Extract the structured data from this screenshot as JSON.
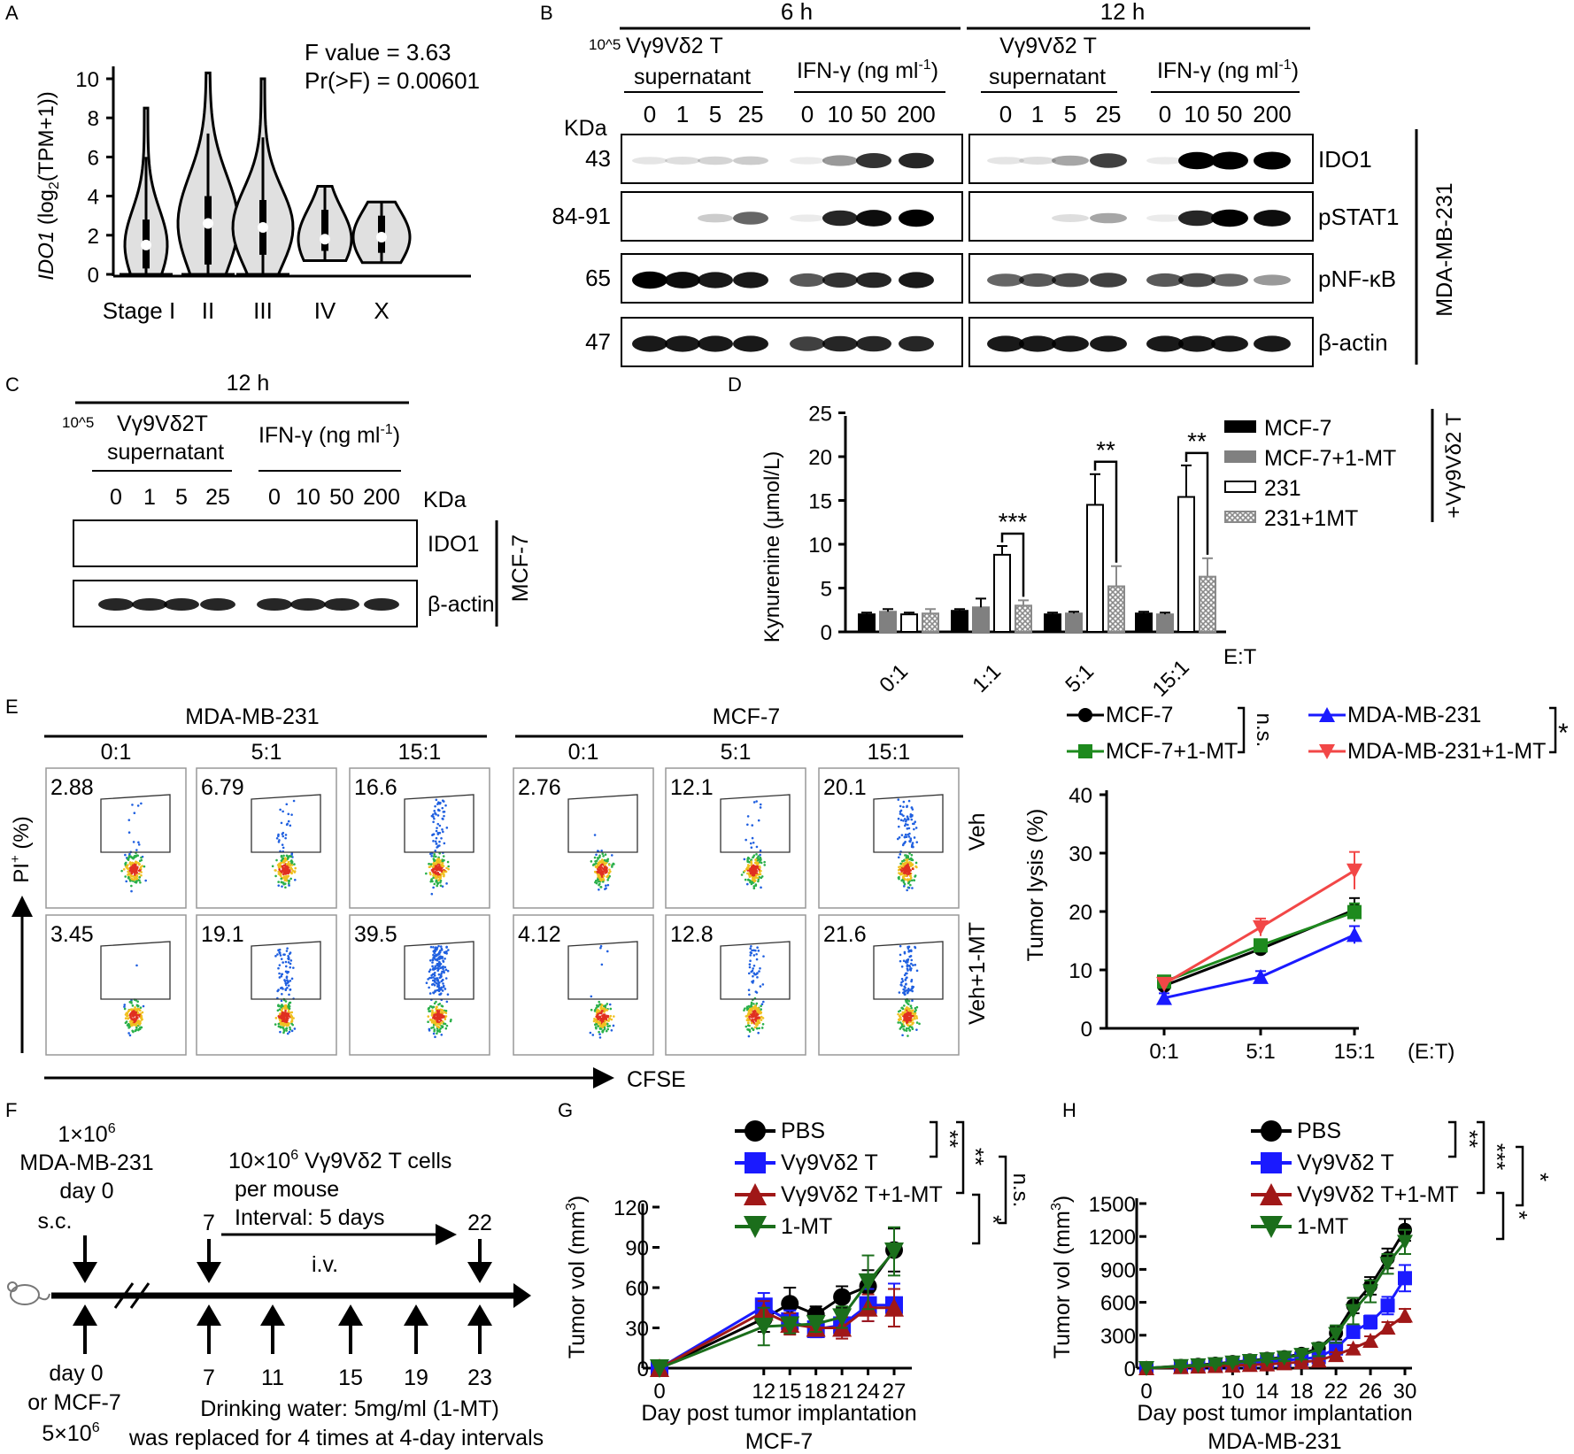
{
  "colors": {
    "black": "#000000",
    "grey": "#808080",
    "blue": "#1a1aff",
    "red": "#f24747",
    "green": "#1e8a1e",
    "darkred": "#a01818",
    "darkgreen": "#1b6e1b"
  },
  "panelA": {
    "letter": "A",
    "ylabel": "IDO1 (log2(TPM+1))",
    "ylabel_gene": "IDO1",
    "ylabel_rest": " (log",
    "ylabel_sub": "2",
    "ylabel_tail": "(TPM+1))",
    "stats": [
      "F value = 3.63",
      "Pr(>F) = 0.00601"
    ],
    "yticks": [
      "0",
      "2",
      "4",
      "6",
      "8",
      "10"
    ],
    "groups": [
      {
        "label": "Stage I",
        "median": 1.5,
        "q1": 0.3,
        "q3": 2.8,
        "min": 0,
        "max": 8.5
      },
      {
        "label": "II",
        "median": 2.6,
        "q1": 0.5,
        "q3": 4,
        "min": 0,
        "max": 10.3
      },
      {
        "label": "III",
        "median": 2.4,
        "q1": 1,
        "q3": 3.8,
        "min": 0,
        "max": 10
      },
      {
        "label": "IV",
        "median": 1.8,
        "q1": 1.2,
        "q3": 3.3,
        "min": 0.7,
        "max": 4.5
      },
      {
        "label": "X",
        "median": 1.9,
        "q1": 1.1,
        "q3": 3,
        "min": 0.6,
        "max": 3.7
      }
    ]
  },
  "panelB": {
    "letter": "B",
    "times": [
      "6 h",
      "12 h"
    ],
    "sup_label_6h_prefix": "10^5",
    "sup_label_6h": "Vγ9Vδ2 T",
    "sup_label_12h": "Vγ9Vδ2 T",
    "supernatant": "supernatant",
    "ifn_label": "IFN-γ (ng ml",
    "ifn_sup": "-1",
    "close_paren": ")",
    "sup_doses": [
      "0",
      "1",
      "5",
      "25"
    ],
    "ifn_doses": [
      "0",
      "10",
      "50",
      "200"
    ],
    "kda": "KDa",
    "rows": [
      {
        "kda": "43",
        "protein": "IDO1"
      },
      {
        "kda": "84-91",
        "protein": "pSTAT1"
      },
      {
        "kda": "65",
        "protein": "pNF-κB"
      },
      {
        "kda": "47",
        "protein": "β-actin"
      }
    ],
    "cell_line": "MDA-MB-231"
  },
  "panelC": {
    "letter": "C",
    "time": "12 h",
    "sup_prefix": "10^5",
    "sup_label": "Vγ9Vδ2T",
    "supernatant": "supernatant",
    "ifn_label": "IFN-γ (ng ml",
    "ifn_sup": "-1",
    "close_paren": ")",
    "sup_doses": [
      "0",
      "1",
      "5",
      "25"
    ],
    "ifn_doses": [
      "0",
      "10",
      "50",
      "200"
    ],
    "kda": "KDa",
    "rows": [
      {
        "protein": "IDO1"
      },
      {
        "protein": "β-actin"
      }
    ],
    "cell_line": "MCF-7"
  },
  "panelD": {
    "letter": "D",
    "ylabel": "Kynurenine (μmol/L)",
    "xlabel": "E:T",
    "side_label": "+Vγ9Vδ2 T",
    "yticks": [
      "0",
      "5",
      "10",
      "15",
      "20",
      "25"
    ],
    "chart_data": {
      "type": "bar",
      "categories": [
        "0:1",
        "1:1",
        "5:1",
        "15:1"
      ],
      "series": [
        {
          "name": "MCF-7",
          "values": [
            2.0,
            2.4,
            2.0,
            2.1
          ],
          "errors": [
            0.2,
            0.2,
            0.2,
            0.2
          ]
        },
        {
          "name": "MCF-7+1-MT",
          "values": [
            2.3,
            2.8,
            2.1,
            2.0
          ],
          "errors": [
            0.3,
            1.0,
            0.2,
            0.2
          ]
        },
        {
          "name": "231",
          "values": [
            2.0,
            8.8,
            14.5,
            15.4
          ],
          "errors": [
            0.2,
            1.0,
            3.5,
            3.6
          ]
        },
        {
          "name": "231+1MT",
          "values": [
            2.1,
            3.0,
            5.2,
            6.3
          ],
          "errors": [
            0.5,
            0.6,
            2.3,
            2.1
          ]
        }
      ],
      "ylim": [
        0,
        25
      ],
      "significance": [
        "***",
        "**",
        "**"
      ]
    }
  },
  "panelE": {
    "letter": "E",
    "groups": [
      "MDA-MB-231",
      "MCF-7"
    ],
    "ratios": [
      "0:1",
      "5:1",
      "15:1",
      "0:1",
      "5:1",
      "15:1"
    ],
    "row_labels": [
      "Veh",
      "Veh+1-MT"
    ],
    "values_veh": [
      "2.88",
      "6.79",
      "16.6",
      "2.76",
      "12.1",
      "20.1"
    ],
    "values_mt": [
      "3.45",
      "19.1",
      "39.5",
      "4.12",
      "12.8",
      "21.6"
    ],
    "y_axis": "PI+ (%)",
    "y_axis_main": "PI",
    "y_axis_sup": "+",
    "y_axis_tail": " (%)",
    "x_axis": "CFSE",
    "legend": [
      "MCF-7",
      "MCF-7+1-MT",
      "MDA-MB-231",
      "MDA-MB-231+1-MT"
    ],
    "sig_left": "n.s.",
    "sig_right": "*",
    "ylabel": "Tumor lysis (%)",
    "xunit": "(E:T)",
    "yticks": [
      "0",
      "10",
      "20",
      "30",
      "40"
    ],
    "chart_data": {
      "type": "line",
      "x": [
        "0:1",
        "5:1",
        "15:1"
      ],
      "series": [
        {
          "name": "MCF-7",
          "values": [
            7.3,
            13.6,
            20.3
          ],
          "errors": [
            1.0,
            1.0,
            2.0
          ]
        },
        {
          "name": "MCF-7+1-MT",
          "values": [
            8.0,
            14.2,
            19.9
          ],
          "errors": [
            1.0,
            1.0,
            1.5
          ]
        },
        {
          "name": "MDA-MB-231",
          "values": [
            5.2,
            8.8,
            16.0
          ],
          "errors": [
            0.8,
            1.0,
            1.5
          ]
        },
        {
          "name": "MDA-MB-231+1-MT",
          "values": [
            7.6,
            17.3,
            27.0
          ],
          "errors": [
            1.0,
            1.5,
            3.2
          ]
        }
      ],
      "ylim": [
        0,
        40
      ]
    }
  },
  "panelF": {
    "letter": "F",
    "inj_line1": "1×10",
    "inj_sup": "6",
    "inj_line2": "MDA-MB-231",
    "inj_line3": "day 0",
    "sc": "s.c.",
    "cells_line1": "10×10",
    "cells_sup": "6",
    "cells_line1b": " Vγ9Vδ2 T cells",
    "cells_line2": "per mouse",
    "cells_line3": "Interval: 5 days",
    "iv": "i.v.",
    "top_days": [
      "7",
      "22"
    ],
    "bottom_days": [
      "7",
      "11",
      "15",
      "19",
      "23"
    ],
    "day0_label": "day 0",
    "or_mcf": "or MCF-7",
    "mcf_count": "5×10",
    "mcf_sup": "6",
    "drink1": "Drinking water: 5mg/ml (1-MT)",
    "drink2": "was replaced for 4 times at 4-day intervals"
  },
  "panelG": {
    "letter": "G",
    "ylabel": "Tumor vol (mm³)",
    "ylabel_main": "Tumor vol (mm",
    "ylabel_sup": "3",
    "ylabel_tail": ")",
    "xlabel": "Day post tumor implantation",
    "subtitle": "MCF-7",
    "yticks": [
      "0",
      "30",
      "60",
      "90",
      "120"
    ],
    "xticks": [
      "0",
      "12",
      "15",
      "18",
      "21",
      "24",
      "27"
    ],
    "legend": [
      "PBS",
      "Vγ9Vδ2 T",
      "Vγ9Vδ2 T+1-MT",
      "1-MT"
    ],
    "sig": [
      "**",
      "**",
      "n.s.",
      "*"
    ],
    "chart_data": {
      "type": "line",
      "x": [
        0,
        12,
        15,
        18,
        21,
        24,
        27
      ],
      "series": [
        {
          "name": "PBS",
          "values": [
            0,
            37,
            48,
            40,
            53,
            61,
            88
          ],
          "errors": [
            0,
            10,
            12,
            6,
            8,
            12,
            16
          ]
        },
        {
          "name": "Vγ9Vδ2 T",
          "values": [
            0,
            46,
            35,
            29,
            32,
            47,
            47
          ],
          "errors": [
            0,
            10,
            8,
            6,
            8,
            12,
            16
          ]
        },
        {
          "name": "Vγ9Vδ2 T+1-MT",
          "values": [
            0,
            42,
            33,
            30,
            30,
            45,
            45
          ],
          "errors": [
            0,
            8,
            8,
            6,
            8,
            10,
            14
          ]
        },
        {
          "name": "1-MT",
          "values": [
            0,
            31,
            32,
            33,
            38,
            64,
            87
          ],
          "errors": [
            0,
            14,
            6,
            6,
            8,
            20,
            18
          ]
        }
      ],
      "xlim": [
        0,
        27
      ],
      "ylim": [
        0,
        120
      ]
    }
  },
  "panelH": {
    "letter": "H",
    "ylabel": "Tumor vol (mm³)",
    "ylabel_main": "Tumor vol (mm",
    "ylabel_sup": "3",
    "ylabel_tail": ")",
    "xlabel": "Day post tumor implantation",
    "subtitle": "MDA-MB-231",
    "yticks": [
      "0",
      "300",
      "600",
      "900",
      "1200",
      "1500"
    ],
    "xticks": [
      "0",
      "10",
      "14",
      "18",
      "22",
      "26",
      "30"
    ],
    "legend": [
      "PBS",
      "Vγ9Vδ2 T",
      "Vγ9Vδ2 T+1-MT",
      "1-MT"
    ],
    "sig": [
      "**",
      "***",
      "*",
      "*"
    ],
    "chart_data": {
      "type": "line",
      "x": [
        0,
        4,
        6,
        8,
        10,
        12,
        14,
        16,
        18,
        20,
        22,
        24,
        26,
        28,
        30
      ],
      "series": [
        {
          "name": "PBS",
          "values": [
            0,
            20,
            30,
            40,
            55,
            70,
            85,
            100,
            130,
            180,
            320,
            570,
            750,
            1000,
            1260
          ],
          "errors": [
            0,
            10,
            10,
            12,
            15,
            20,
            25,
            30,
            40,
            50,
            60,
            70,
            80,
            90,
            100
          ]
        },
        {
          "name": "Vγ9Vδ2 T",
          "values": [
            0,
            15,
            20,
            30,
            40,
            50,
            60,
            70,
            85,
            100,
            180,
            330,
            420,
            570,
            820
          ],
          "errors": [
            0,
            8,
            8,
            10,
            12,
            14,
            16,
            20,
            25,
            30,
            40,
            50,
            60,
            80,
            120
          ]
        },
        {
          "name": "Vγ9Vδ2 T+1-MT",
          "values": [
            0,
            10,
            15,
            20,
            25,
            30,
            35,
            45,
            55,
            70,
            120,
            180,
            250,
            370,
            480
          ],
          "errors": [
            0,
            8,
            8,
            10,
            10,
            12,
            12,
            14,
            16,
            20,
            25,
            30,
            40,
            50,
            60
          ]
        },
        {
          "name": "1-MT",
          "values": [
            0,
            18,
            25,
            35,
            50,
            65,
            80,
            95,
            120,
            170,
            310,
            520,
            700,
            950,
            1150
          ],
          "errors": [
            0,
            10,
            10,
            12,
            15,
            20,
            25,
            30,
            40,
            60,
            80,
            120,
            100,
            90,
            110
          ]
        }
      ],
      "xlim": [
        0,
        30
      ],
      "ylim": [
        0,
        1500
      ]
    }
  }
}
